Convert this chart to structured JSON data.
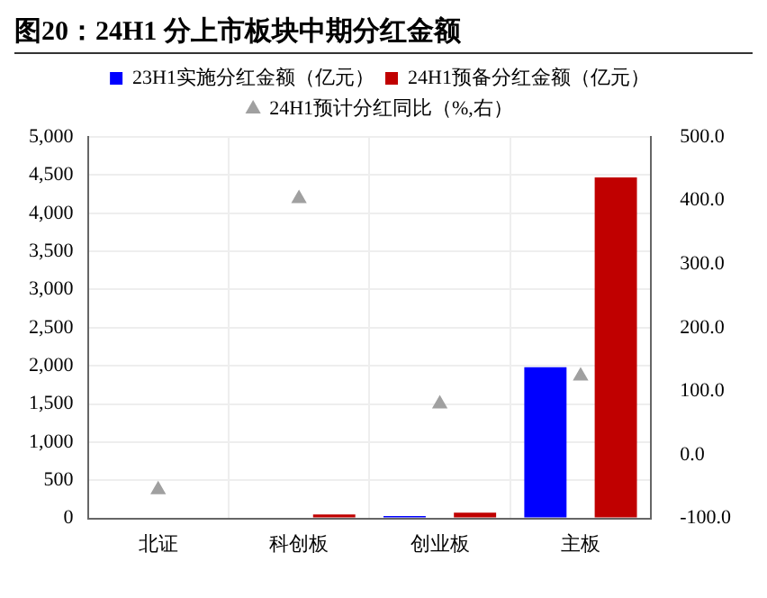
{
  "chart_data": {
    "type": "bar",
    "title": "图20：24H1 分上市板块中期分红金额",
    "categories": [
      "北证",
      "科创板",
      "创业板",
      "主板"
    ],
    "series": [
      {
        "name": "23H1实施分红金额（亿元）",
        "color": "#0000ff",
        "values": [
          null,
          null,
          30,
          1980
        ]
      },
      {
        "name": "24H1预备分红金额（亿元）",
        "color": "#c00000",
        "values": [
          null,
          50,
          75,
          4470
        ]
      },
      {
        "name": "24H1预计分红同比（%,右）",
        "type": "scatter",
        "axis": "y2",
        "color": "#a0a0a0",
        "x": [
          "北证",
          "科创板",
          "创业板",
          "主板"
        ],
        "values": [
          -55,
          403,
          80,
          124
        ]
      }
    ],
    "ylim": [
      0,
      5000
    ],
    "yticks": [
      0,
      {
        "value": 500,
        "label": "500"
      },
      {
        "value": 1000,
        "label": "1,000"
      },
      {
        "value": 1500,
        "label": "1,500"
      },
      {
        "value": 2000,
        "label": "2,000"
      },
      {
        "value": 2500,
        "label": "2,500"
      },
      {
        "value": 3000,
        "label": "3,000"
      },
      {
        "value": 3500,
        "label": "3,500"
      },
      {
        "value": 4000,
        "label": "4,000"
      },
      {
        "value": 4500,
        "label": "4,500"
      },
      {
        "value": 5000,
        "label": "5,000"
      }
    ],
    "y2lim": [
      -100,
      500
    ],
    "y2ticks": [
      {
        "value": -100,
        "label": "-100.0"
      },
      {
        "value": 0,
        "label": "0.0"
      },
      {
        "value": 100,
        "label": "100.0"
      },
      {
        "value": 200,
        "label": "200.0"
      },
      {
        "value": 300,
        "label": "300.0"
      },
      {
        "value": 400,
        "label": "400.0"
      },
      {
        "value": 500,
        "label": "500.0"
      }
    ],
    "grid": true,
    "legend": "top",
    "marker": "triangle"
  }
}
